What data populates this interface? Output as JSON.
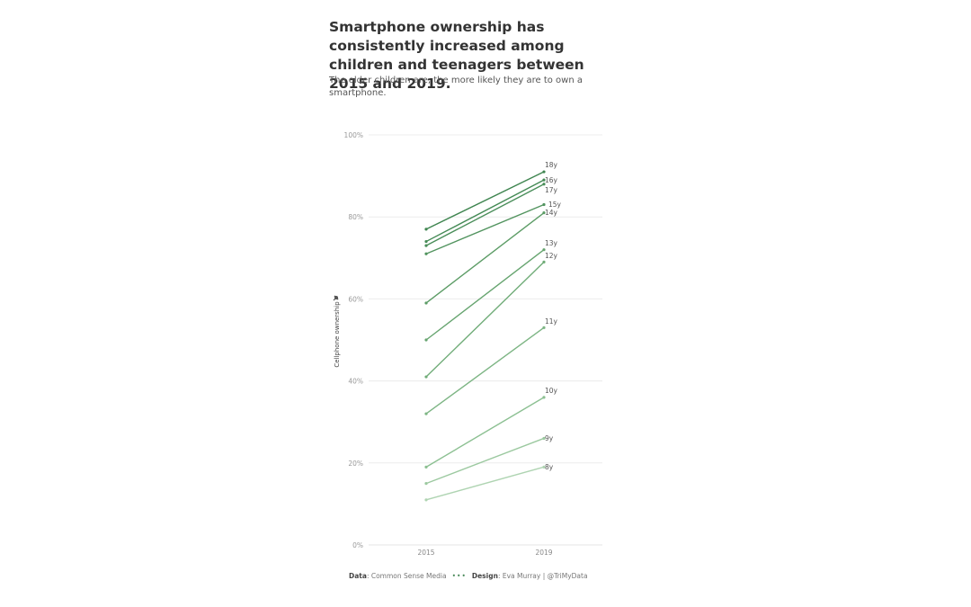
{
  "title": "Smartphone ownership has consistently increased among children and teenagers between 2015 and 2019.",
  "subtitle": "The older children are, the more likely they are to own a smartphone.",
  "footer": {
    "data_label": "Data",
    "data_source": "Common Sense Media",
    "separator": "•••",
    "design_label": "Design",
    "design_credit": "Eva Murray | @TriMyData"
  },
  "chart_data": {
    "type": "line",
    "ylabel": "Cellphone ownership",
    "ylabel_icon": "pin-icon",
    "ylim": [
      0,
      100
    ],
    "yticks": [
      0,
      20,
      40,
      60,
      80,
      100
    ],
    "ytick_labels": [
      "0%",
      "20%",
      "40%",
      "60%",
      "80%",
      "100%"
    ],
    "x": [
      "2015",
      "2019"
    ],
    "grid": true,
    "series": [
      {
        "name": "18y",
        "values": [
          77,
          91
        ],
        "color": "#3f8550"
      },
      {
        "name": "16y",
        "values": [
          74,
          89
        ],
        "color": "#448a55"
      },
      {
        "name": "17y",
        "values": [
          73,
          88
        ],
        "color": "#4a8e5a"
      },
      {
        "name": "15y",
        "values": [
          71,
          83
        ],
        "color": "#52945f"
      },
      {
        "name": "14y",
        "values": [
          59,
          81
        ],
        "color": "#5c9c66"
      },
      {
        "name": "13y",
        "values": [
          50,
          72
        ],
        "color": "#66a46f"
      },
      {
        "name": "12y",
        "values": [
          41,
          69
        ],
        "color": "#70ac78"
      },
      {
        "name": "11y",
        "values": [
          32,
          53
        ],
        "color": "#7db584"
      },
      {
        "name": "10y",
        "values": [
          19,
          36
        ],
        "color": "#8cc092"
      },
      {
        "name": "9y",
        "values": [
          15,
          26
        ],
        "color": "#9cc9a0"
      },
      {
        "name": "8y",
        "values": [
          11,
          19
        ],
        "color": "#afd4b2"
      }
    ]
  }
}
